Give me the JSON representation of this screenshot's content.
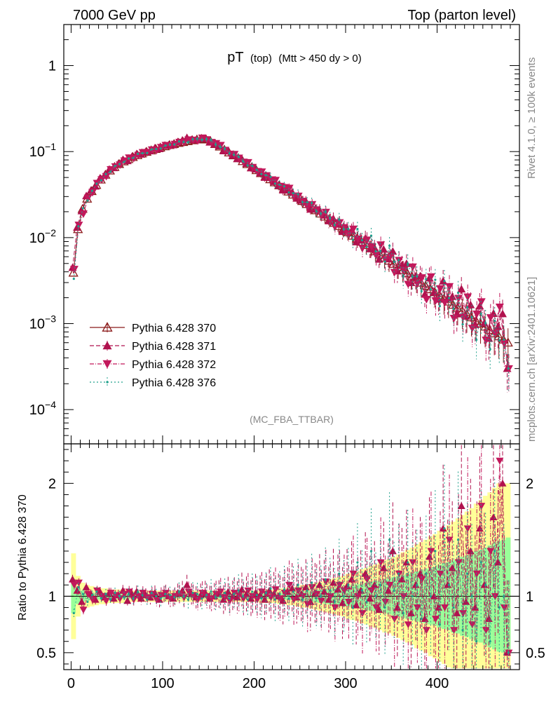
{
  "header": {
    "left": "7000 GeV pp",
    "right": "Top (parton level)"
  },
  "side_labels": {
    "rivet": "Rivet 4.1.0, ≥ 100k events",
    "mcplots": "mcplots.cern.ch [arXiv:2401.10621]"
  },
  "analysis_tag": "(MC_FBA_TTBAR)",
  "chart_data": {
    "type": "line",
    "title_main": "pT",
    "title_sub": "(top)",
    "title_cut": "(Mtt > 450 dy > 0)",
    "xlabel": "",
    "ylabel_ratio": "Ratio to Pythia 6.428 370",
    "x_range": [
      -8,
      490
    ],
    "y_range_main": [
      4e-05,
      3
    ],
    "y_range_ratio": [
      0.35,
      2.35
    ],
    "yscale_main": "log",
    "x_ticks": [
      "0",
      "100",
      "200",
      "300",
      "400"
    ],
    "x_tick_values": [
      0,
      100,
      200,
      300,
      400
    ],
    "y_ticks_main": [
      {
        "value": 1,
        "base": "1",
        "exp": ""
      },
      {
        "value": 0.1,
        "base": "10",
        "exp": "−1"
      },
      {
        "value": 0.01,
        "base": "10",
        "exp": "−2"
      },
      {
        "value": 0.001,
        "base": "10",
        "exp": "−3"
      },
      {
        "value": 0.0001,
        "base": "10",
        "exp": "−4"
      }
    ],
    "y_ticks_ratio": [
      {
        "value": 2,
        "label": "2"
      },
      {
        "value": 1,
        "label": "1"
      },
      {
        "value": 0.5,
        "label": "0.5"
      }
    ],
    "legend_position": "bottom-left",
    "x": [
      2.5,
      7.5,
      12.5,
      17.5,
      22.5,
      27.5,
      32.5,
      37.5,
      42.5,
      47.5,
      52.5,
      57.5,
      62.5,
      67.5,
      72.5,
      77.5,
      82.5,
      87.5,
      92.5,
      97.5,
      102.5,
      107.5,
      112.5,
      117.5,
      122.5,
      127.5,
      132.5,
      137.5,
      142.5,
      147.5,
      152.5,
      157.5,
      162.5,
      167.5,
      172.5,
      177.5,
      182.5,
      187.5,
      192.5,
      197.5,
      202.5,
      207.5,
      212.5,
      217.5,
      222.5,
      227.5,
      232.5,
      237.5,
      242.5,
      247.5,
      252.5,
      257.5,
      262.5,
      267.5,
      272.5,
      277.5,
      282.5,
      287.5,
      292.5,
      297.5,
      302.5,
      307.5,
      312.5,
      317.5,
      322.5,
      327.5,
      332.5,
      337.5,
      342.5,
      347.5,
      352.5,
      357.5,
      362.5,
      367.5,
      372.5,
      377.5,
      382.5,
      387.5,
      392.5,
      397.5,
      402.5,
      407.5,
      412.5,
      417.5,
      422.5,
      427.5,
      432.5,
      437.5,
      442.5,
      447.5,
      452.5,
      457.5,
      462.5,
      467.5,
      472.5,
      477.5
    ],
    "series": [
      {
        "name": "Pythia 6.428 370",
        "color": "#8b1a1a",
        "marker": "triangle-up-open",
        "dash": "",
        "ratio": [
          1,
          1,
          1,
          1,
          1,
          1,
          1,
          1,
          1,
          1,
          1,
          1,
          1,
          1,
          1,
          1,
          1,
          1,
          1,
          1,
          1,
          1,
          1,
          1,
          1,
          1,
          1,
          1,
          1,
          1,
          1,
          1,
          1,
          1,
          1,
          1,
          1,
          1,
          1,
          1,
          1,
          1,
          1,
          1,
          1,
          1,
          1,
          1,
          1,
          1,
          1,
          1,
          1,
          1,
          1,
          1,
          1,
          1,
          1,
          1,
          1,
          1,
          1,
          1,
          1,
          1,
          1,
          1,
          1,
          1,
          1,
          1,
          1,
          1,
          1,
          1,
          1,
          1,
          1,
          1,
          1,
          1,
          1,
          1,
          1,
          1,
          1,
          1,
          1,
          1,
          1,
          1,
          1,
          1,
          1,
          1
        ],
        "values": [
          0.0039,
          0.0125,
          0.0215,
          0.0283,
          0.0346,
          0.0408,
          0.0472,
          0.0537,
          0.0601,
          0.0661,
          0.0716,
          0.0767,
          0.0815,
          0.0862,
          0.0906,
          0.0949,
          0.0991,
          0.103,
          0.107,
          0.111,
          0.115,
          0.119,
          0.122,
          0.126,
          0.129,
          0.132,
          0.135,
          0.138,
          0.14,
          0.138,
          0.131,
          0.122,
          0.114,
          0.105,
          0.0975,
          0.0903,
          0.0835,
          0.0772,
          0.0713,
          0.0658,
          0.0607,
          0.056,
          0.0516,
          0.0476,
          0.0438,
          0.0404,
          0.0372,
          0.0342,
          0.0315,
          0.029,
          0.0266,
          0.0245,
          0.0225,
          0.0207,
          0.019,
          0.0175,
          0.0161,
          0.0148,
          0.0136,
          0.0125,
          0.0115,
          0.0105,
          0.00968,
          0.0089,
          0.00818,
          0.00752,
          0.00691,
          0.00635,
          0.00584,
          0.00537,
          0.00494,
          0.00454,
          0.00417,
          0.00383,
          0.00352,
          0.00324,
          0.00298,
          0.00274,
          0.00251,
          0.00231,
          0.00213,
          0.00195,
          0.0018,
          0.00165,
          0.00152,
          0.0014,
          0.00128,
          0.00118,
          0.00108,
          0.001,
          0.00092,
          0.00084,
          0.00077,
          0.00071,
          0.00065,
          0.0006
        ]
      },
      {
        "name": "Pythia 6.428 371",
        "color": "#b0124e",
        "marker": "triangle-up",
        "dash": "6,3",
        "ratio": [
          1.15,
          1.05,
          0.95,
          1.08,
          1.02,
          0.97,
          1.04,
          0.99,
          1.03,
          0.98,
          1.01,
          1.05,
          0.96,
          1.02,
          1.04,
          0.98,
          1.01,
          0.99,
          1.03,
          0.97,
          1.02,
          1.0,
          0.98,
          1.03,
          1.05,
          1.1,
          1.02,
          0.99,
          1.01,
          1.03,
          0.98,
          1.0,
          1.02,
          0.97,
          1.04,
          1.0,
          0.99,
          1.06,
          1.02,
          0.98,
          1.03,
          1.01,
          0.97,
          1.05,
          1.02,
          1.0,
          0.96,
          1.04,
          1.07,
          0.99,
          1.02,
          1.08,
          0.95,
          1.03,
          1.1,
          1.04,
          0.97,
          1.12,
          1.06,
          0.94,
          1.09,
          1.15,
          0.92,
          1.05,
          1.2,
          0.98,
          1.1,
          0.88,
          1.25,
          1.05,
          1.4,
          0.9,
          1.15,
          1.3,
          0.85,
          1.1,
          1.2,
          0.8,
          1.35,
          1.0,
          0.9,
          1.6,
          1.1,
          1.25,
          0.85,
          1.8,
          0.95,
          1.4,
          0.9,
          1.6,
          1.1,
          0.8,
          1.7,
          1.3,
          2.0,
          0.5
        ]
      },
      {
        "name": "Pythia 6.428 372",
        "color": "#c2185b",
        "marker": "triangle-down",
        "dash": "6,2,1,2",
        "ratio": [
          1.1,
          1.12,
          0.88,
          1.02,
          0.97,
          1.05,
          1.0,
          0.96,
          1.03,
          1.01,
          0.98,
          1.02,
          1.04,
          0.97,
          1.0,
          1.03,
          0.99,
          1.02,
          0.97,
          1.01,
          1.03,
          0.98,
          1.0,
          1.02,
          0.99,
          1.04,
          1.01,
          0.97,
          1.03,
          1.0,
          0.98,
          1.02,
          1.04,
          0.99,
          0.96,
          1.03,
          1.01,
          0.98,
          1.05,
          1.0,
          0.97,
          1.04,
          1.02,
          0.99,
          1.06,
          0.98,
          1.03,
          1.1,
          0.97,
          1.05,
          1.0,
          0.93,
          1.08,
          1.02,
          0.96,
          1.13,
          1.0,
          0.9,
          1.1,
          1.05,
          0.95,
          1.2,
          1.0,
          0.85,
          1.15,
          1.05,
          0.9,
          1.3,
          0.95,
          1.1,
          0.8,
          1.2,
          1.0,
          0.75,
          1.3,
          0.9,
          1.15,
          0.7,
          1.4,
          0.8,
          1.2,
          0.9,
          1.5,
          0.7,
          1.3,
          0.85,
          1.6,
          0.75,
          1.2,
          1.8,
          0.7,
          1.4,
          1.0,
          2.2,
          0.9,
          0.5
        ]
      },
      {
        "name": "Pythia 6.428 376",
        "color": "#20a08c",
        "marker": "dot",
        "dash": "2,3",
        "ratio": [
          0.85,
          1.08,
          1.02,
          0.95,
          1.01,
          1.04,
          0.98,
          1.02,
          0.97,
          1.03,
          1.0,
          0.99,
          1.02,
          0.98,
          1.04,
          1.01,
          0.97,
          1.03,
          1.0,
          0.98,
          1.02,
          1.01,
          0.99,
          1.04,
          1.0,
          0.97,
          1.03,
          1.02,
          0.98,
          1.01,
          1.04,
          0.99,
          1.0,
          1.03,
          0.98,
          1.02,
          1.05,
          1.0,
          0.97,
          1.04,
          1.01,
          0.98,
          1.03,
          1.07,
          0.97,
          1.02,
          1.06,
          0.98,
          1.04,
          1.1,
          0.97,
          1.05,
          1.12,
          0.98,
          1.0,
          1.15,
          1.05,
          0.95,
          1.2,
          1.0,
          1.1,
          0.9,
          1.3,
          1.05,
          0.95,
          1.4,
          1.0,
          1.1,
          0.9,
          1.5,
          1.05,
          1.2,
          0.85,
          1.3,
          1.0,
          1.1,
          0.8,
          1.2,
          1.0,
          1.4,
          0.75,
          1.6,
          1.1,
          0.9,
          1.5,
          0.7,
          1.2,
          1.0,
          0.6,
          1.3,
          1.1,
          0.6,
          1.4,
          0.9,
          1.0,
          0.5
        ]
      }
    ],
    "band_ratio": {
      "yellow_half": [
        0.38,
        0.18,
        0.12,
        0.1,
        0.09,
        0.08,
        0.07,
        0.07,
        0.06,
        0.06,
        0.06,
        0.06,
        0.05,
        0.05,
        0.05,
        0.05,
        0.05,
        0.05,
        0.05,
        0.05,
        0.05,
        0.05,
        0.05,
        0.05,
        0.05,
        0.05,
        0.05,
        0.05,
        0.05,
        0.05,
        0.05,
        0.05,
        0.05,
        0.05,
        0.05,
        0.05,
        0.05,
        0.05,
        0.05,
        0.05,
        0.05,
        0.06,
        0.06,
        0.06,
        0.06,
        0.07,
        0.07,
        0.08,
        0.08,
        0.09,
        0.1,
        0.1,
        0.11,
        0.12,
        0.13,
        0.14,
        0.15,
        0.16,
        0.17,
        0.18,
        0.2,
        0.21,
        0.22,
        0.24,
        0.25,
        0.27,
        0.28,
        0.3,
        0.32,
        0.33,
        0.35,
        0.37,
        0.39,
        0.41,
        0.43,
        0.46,
        0.48,
        0.5,
        0.53,
        0.55,
        0.58,
        0.6,
        0.63,
        0.66,
        0.69,
        0.72,
        0.75,
        0.78,
        0.82,
        0.85,
        0.89,
        0.92,
        0.96,
        1.0,
        1.0,
        1.0
      ],
      "green_half": [
        0.15,
        0.07,
        0.05,
        0.04,
        0.035,
        0.03,
        0.03,
        0.03,
        0.025,
        0.025,
        0.025,
        0.025,
        0.02,
        0.02,
        0.02,
        0.02,
        0.02,
        0.02,
        0.02,
        0.02,
        0.02,
        0.02,
        0.02,
        0.02,
        0.02,
        0.02,
        0.02,
        0.02,
        0.02,
        0.02,
        0.02,
        0.02,
        0.02,
        0.02,
        0.02,
        0.02,
        0.02,
        0.02,
        0.02,
        0.02,
        0.02,
        0.025,
        0.025,
        0.025,
        0.025,
        0.03,
        0.03,
        0.035,
        0.035,
        0.04,
        0.045,
        0.045,
        0.05,
        0.055,
        0.06,
        0.065,
        0.07,
        0.075,
        0.08,
        0.085,
        0.09,
        0.1,
        0.105,
        0.11,
        0.12,
        0.13,
        0.135,
        0.14,
        0.15,
        0.16,
        0.17,
        0.18,
        0.19,
        0.2,
        0.21,
        0.22,
        0.23,
        0.24,
        0.25,
        0.26,
        0.28,
        0.29,
        0.3,
        0.32,
        0.33,
        0.35,
        0.36,
        0.38,
        0.4,
        0.41,
        0.43,
        0.45,
        0.47,
        0.49,
        0.5,
        0.52
      ]
    }
  }
}
